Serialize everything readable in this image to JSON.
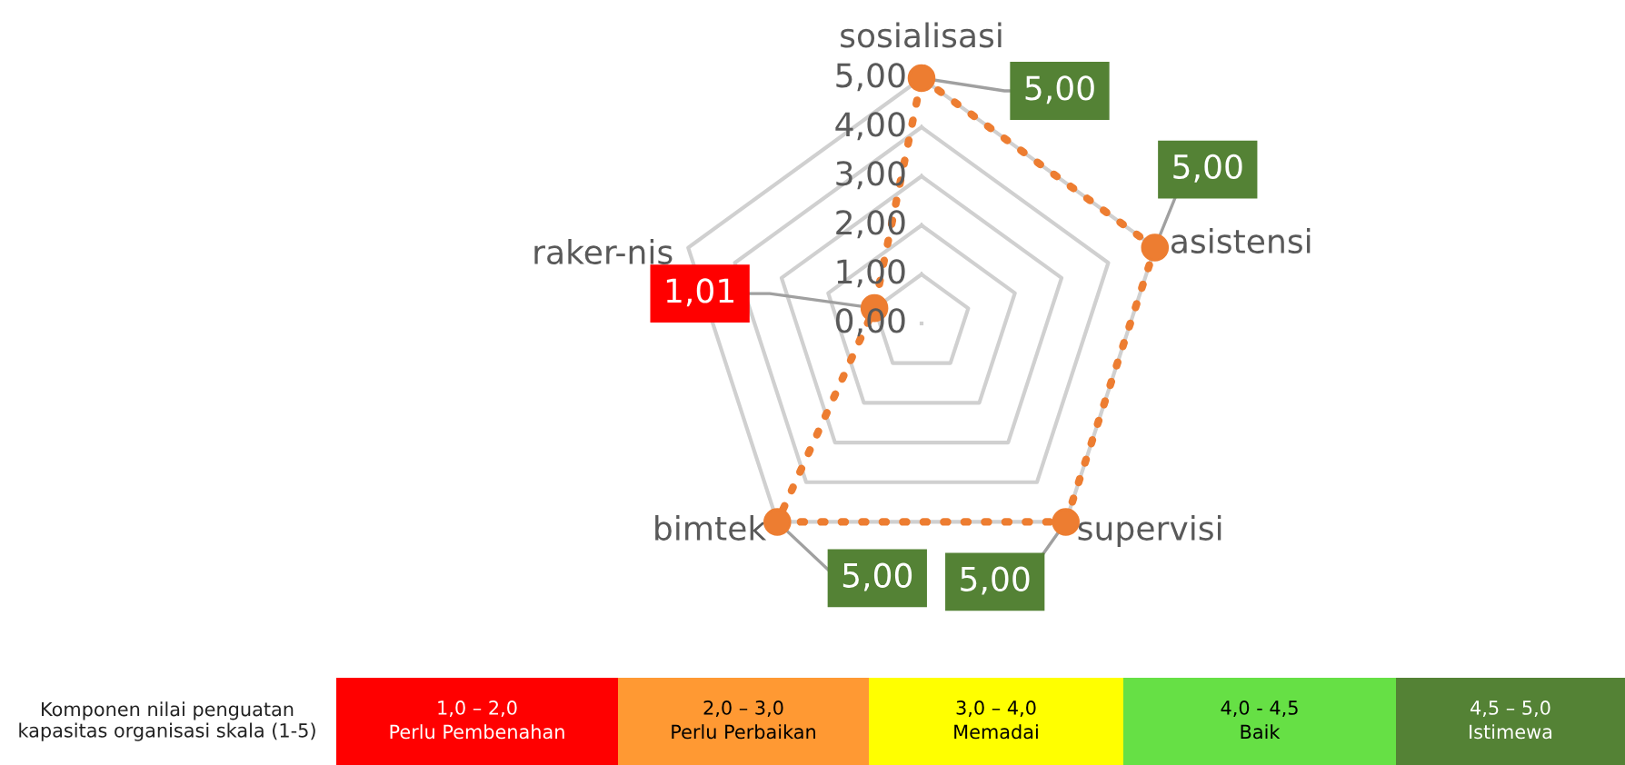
{
  "chart_data": [
    {
      "type": "radar",
      "categories": [
        "sosialisasi",
        "asistensi",
        "supervisi",
        "bimtek",
        "raker-nis"
      ],
      "series": [
        {
          "color": "#ed7d31",
          "values": [
            5.0,
            5.0,
            5.0,
            5.0,
            1.01
          ],
          "value_labels": [
            "5,00",
            "5,00",
            "5,00",
            "5,00",
            "1,01"
          ]
        }
      ],
      "ylim": [
        0,
        5
      ],
      "yticks": [
        {
          "value": 0,
          "label": "0,00"
        },
        {
          "value": 1,
          "label": "1,00"
        },
        {
          "value": 2,
          "label": "2,00"
        },
        {
          "value": 3,
          "label": "3,00"
        },
        {
          "value": 4,
          "label": "4,00"
        },
        {
          "value": 5,
          "label": "5,00"
        }
      ],
      "grid": true,
      "marker": "circle",
      "line_style": "dotted"
    },
    {
      "type": "other",
      "title": "Komponen nilai penguatan kapasitas organisasi skala (1-5)",
      "annotations": [
        "1,0 – 2,0\nPerlu Pembenahan",
        "2,0 – 3,0\nPerlu Perbaikan",
        "3,0 – 4,0\nMemadai",
        "4,0 - 4,5\nBaik",
        "4,5 – 5,0\nIstimewa"
      ],
      "colors": [
        "#ff0000",
        "#ff9933",
        "#ffff00",
        "#66e045",
        "#548235"
      ]
    }
  ]
}
